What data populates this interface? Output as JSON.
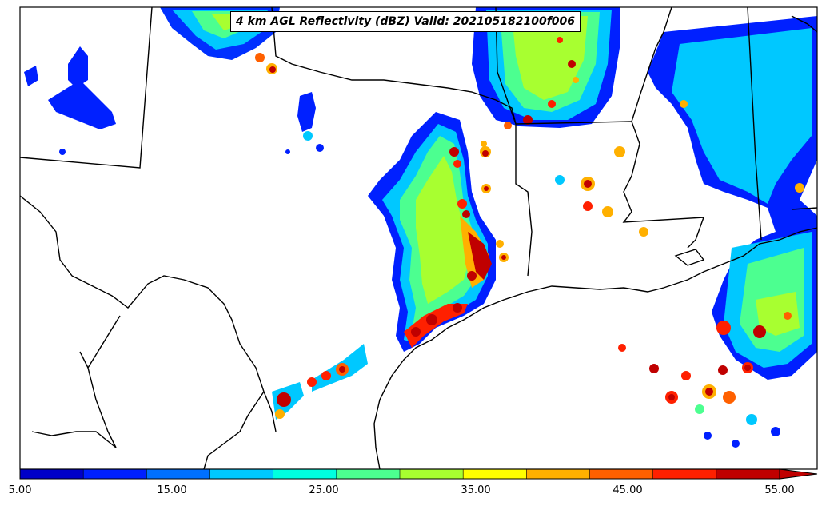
{
  "map": {
    "title": "4 km AGL Reflectivity (dBZ) Valid: 202105182100f006",
    "field": "reflectivity",
    "units": "dBZ"
  },
  "colorbar": {
    "colors": [
      "#0000c8",
      "#0020ff",
      "#0070ff",
      "#00c8ff",
      "#00ffe0",
      "#4cff90",
      "#a8ff30",
      "#ffff00",
      "#ffb000",
      "#ff6000",
      "#ff2000",
      "#c00000"
    ],
    "tick_labels": [
      "5.00",
      "15.00",
      "25.00",
      "35.00",
      "45.00",
      "55.00"
    ],
    "extend": "max"
  }
}
